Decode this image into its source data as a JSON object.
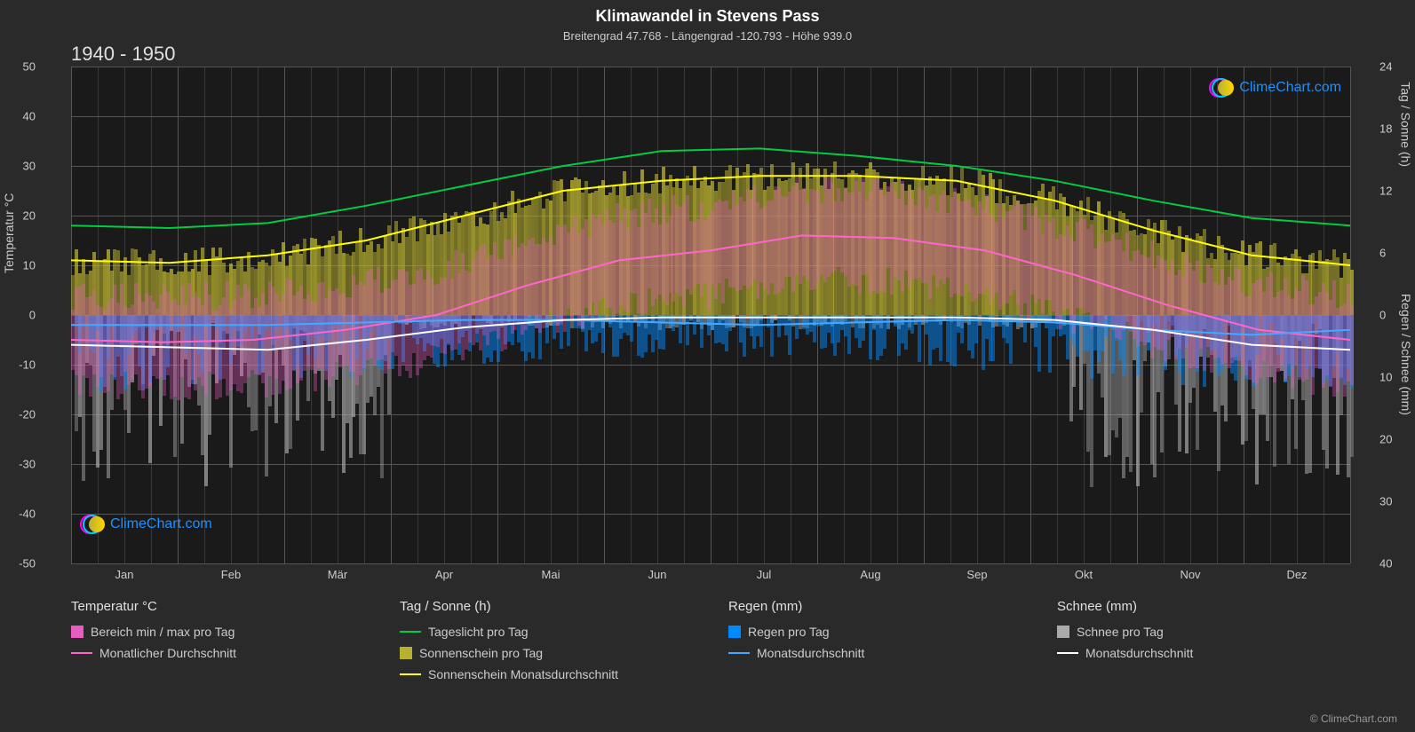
{
  "title": "Klimawandel in Stevens Pass",
  "subtitle": "Breitengrad 47.768 - Längengrad -120.793 - Höhe 939.0",
  "period": "1940 - 1950",
  "y_axis_left": {
    "label": "Temperatur °C",
    "min": -50,
    "max": 50,
    "ticks": [
      -50,
      -40,
      -30,
      -20,
      -10,
      0,
      10,
      20,
      30,
      40,
      50
    ]
  },
  "y_axis_right_top": {
    "label": "Tag / Sonne (h)",
    "min": 0,
    "max": 24,
    "ticks": [
      0,
      6,
      12,
      18,
      24
    ]
  },
  "y_axis_right_bottom": {
    "label": "Regen / Schnee (mm)",
    "min": 0,
    "max": 40,
    "ticks": [
      0,
      10,
      20,
      30,
      40
    ]
  },
  "x_axis": {
    "labels": [
      "Jan",
      "Feb",
      "Mär",
      "Apr",
      "Mai",
      "Jun",
      "Jul",
      "Aug",
      "Sep",
      "Okt",
      "Nov",
      "Dez"
    ]
  },
  "colors": {
    "background": "#2a2a2a",
    "plot_bg": "#1a1a1a",
    "grid": "#555555",
    "grid_minor": "#3a3a3a",
    "temp_range": "#e85cc4",
    "temp_avg": "#ff66cc",
    "daylight": "#00cc44",
    "sunshine_bar": "#b8b030",
    "sunshine_avg": "#ffff00",
    "rain_bar": "#0088ff",
    "rain_avg": "#44aaff",
    "snow_bar": "#aaaaaa",
    "snow_avg": "#ffffff",
    "watermark_blue": "#1e90ff",
    "watermark_magenta": "#ff00ff",
    "watermark_cyan": "#00ccff",
    "watermark_sun": "#ffd700"
  },
  "series": {
    "daylight": [
      18,
      17.5,
      18.5,
      22,
      26,
      30,
      33,
      33.5,
      32,
      30,
      27,
      23,
      19.5,
      18
    ],
    "sunshine_avg": [
      11,
      10.5,
      12,
      15,
      20,
      25,
      27,
      28,
      28,
      27,
      23,
      17,
      12,
      10
    ],
    "temp_avg": [
      -5,
      -5.5,
      -5,
      -3,
      0,
      6,
      11,
      13,
      16,
      15.5,
      13,
      8,
      2,
      -3,
      -5
    ],
    "rain_avg": [
      -2,
      -2,
      -2,
      -1.5,
      -1,
      -1,
      -1.5,
      -2,
      -1.5,
      -1,
      -1.5,
      -3,
      -4,
      -3
    ],
    "snow_avg": [
      -6,
      -6.5,
      -7,
      -5,
      -2.5,
      -1,
      -0.5,
      -0.5,
      -0.5,
      -0.5,
      -1,
      -3,
      -6,
      -7
    ]
  },
  "legend": {
    "temp": {
      "header": "Temperatur °C",
      "items": [
        {
          "type": "swatch",
          "color": "#e85cc4",
          "label": "Bereich min / max pro Tag"
        },
        {
          "type": "line",
          "color": "#ff66cc",
          "label": "Monatlicher Durchschnitt"
        }
      ]
    },
    "daysun": {
      "header": "Tag / Sonne (h)",
      "items": [
        {
          "type": "line",
          "color": "#00cc44",
          "label": "Tageslicht pro Tag"
        },
        {
          "type": "swatch",
          "color": "#b8b030",
          "label": "Sonnenschein pro Tag"
        },
        {
          "type": "line",
          "color": "#ffff00",
          "label": "Sonnenschein Monatsdurchschnitt"
        }
      ]
    },
    "rain": {
      "header": "Regen (mm)",
      "items": [
        {
          "type": "swatch",
          "color": "#0088ff",
          "label": "Regen pro Tag"
        },
        {
          "type": "line",
          "color": "#44aaff",
          "label": "Monatsdurchschnitt"
        }
      ]
    },
    "snow": {
      "header": "Schnee (mm)",
      "items": [
        {
          "type": "swatch",
          "color": "#aaaaaa",
          "label": "Schnee pro Tag"
        },
        {
          "type": "line",
          "color": "#ffffff",
          "label": "Monatsdurchschnitt"
        }
      ]
    }
  },
  "watermark_text": "ClimeChart.com",
  "copyright": "© ClimeChart.com"
}
